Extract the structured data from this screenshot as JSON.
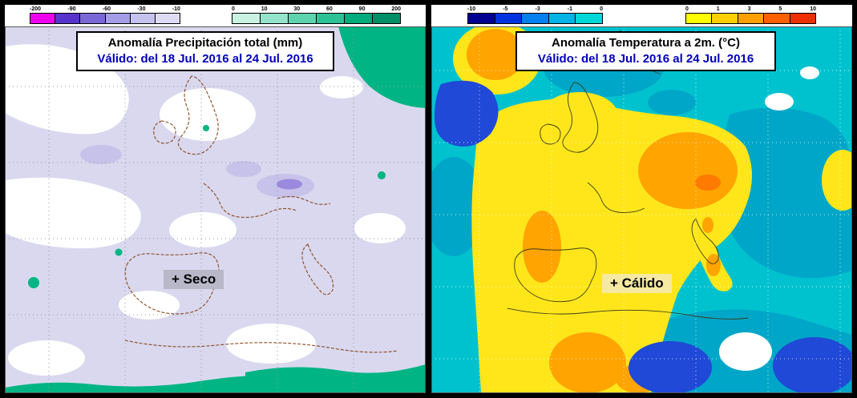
{
  "frame": {
    "background": "#000000",
    "panel_background": "#ffffff"
  },
  "panels": {
    "precipitation": {
      "title": "Anomalía Precipitación total (mm)",
      "title_color": "#000000",
      "valid_text": "Válido: del 18 Jul. 2016 al 24 Jul. 2016",
      "valid_color": "#0000bb",
      "annotation": {
        "text": "+ Seco",
        "bg": "#b9b8c9",
        "color": "#000000"
      },
      "map_base_color": "#d9d8ef",
      "colorbars": {
        "negative": {
          "labels": [
            "-200",
            "-90",
            "-60",
            "-30",
            "-10"
          ],
          "colors": [
            "#ee00ee",
            "#5533cc",
            "#7b68d8",
            "#a49ce4",
            "#c6c2ee",
            "#dedcf5"
          ]
        },
        "positive": {
          "labels": [
            "0",
            "10",
            "30",
            "60",
            "90",
            "200"
          ],
          "colors": [
            "#c9f2e3",
            "#93e4ca",
            "#5ed4ae",
            "#2cc296",
            "#00ab7c",
            "#008f66"
          ]
        }
      }
    },
    "temperature": {
      "title": "Anomalía Temperatura a 2m. (°C)",
      "title_color": "#000000",
      "valid_text": "Válido: del 18 Jul. 2016 al 24 Jul. 2016",
      "valid_color": "#0000bb",
      "annotation": {
        "text": "+ Cálido",
        "bg": "#f6e9a2",
        "color": "#000000"
      },
      "map_base_color": "#00c2cf",
      "colorbars": {
        "negative": {
          "labels": [
            "-10",
            "-5",
            "-3",
            "-1",
            "0"
          ],
          "colors": [
            "#000090",
            "#0033e0",
            "#0080f0",
            "#00b4e8",
            "#00d8d8"
          ]
        },
        "positive": {
          "labels": [
            "0",
            "1",
            "3",
            "5",
            "10"
          ],
          "colors": [
            "#ffff00",
            "#ffd000",
            "#ffa000",
            "#ff6000",
            "#ee3000"
          ]
        }
      }
    }
  }
}
